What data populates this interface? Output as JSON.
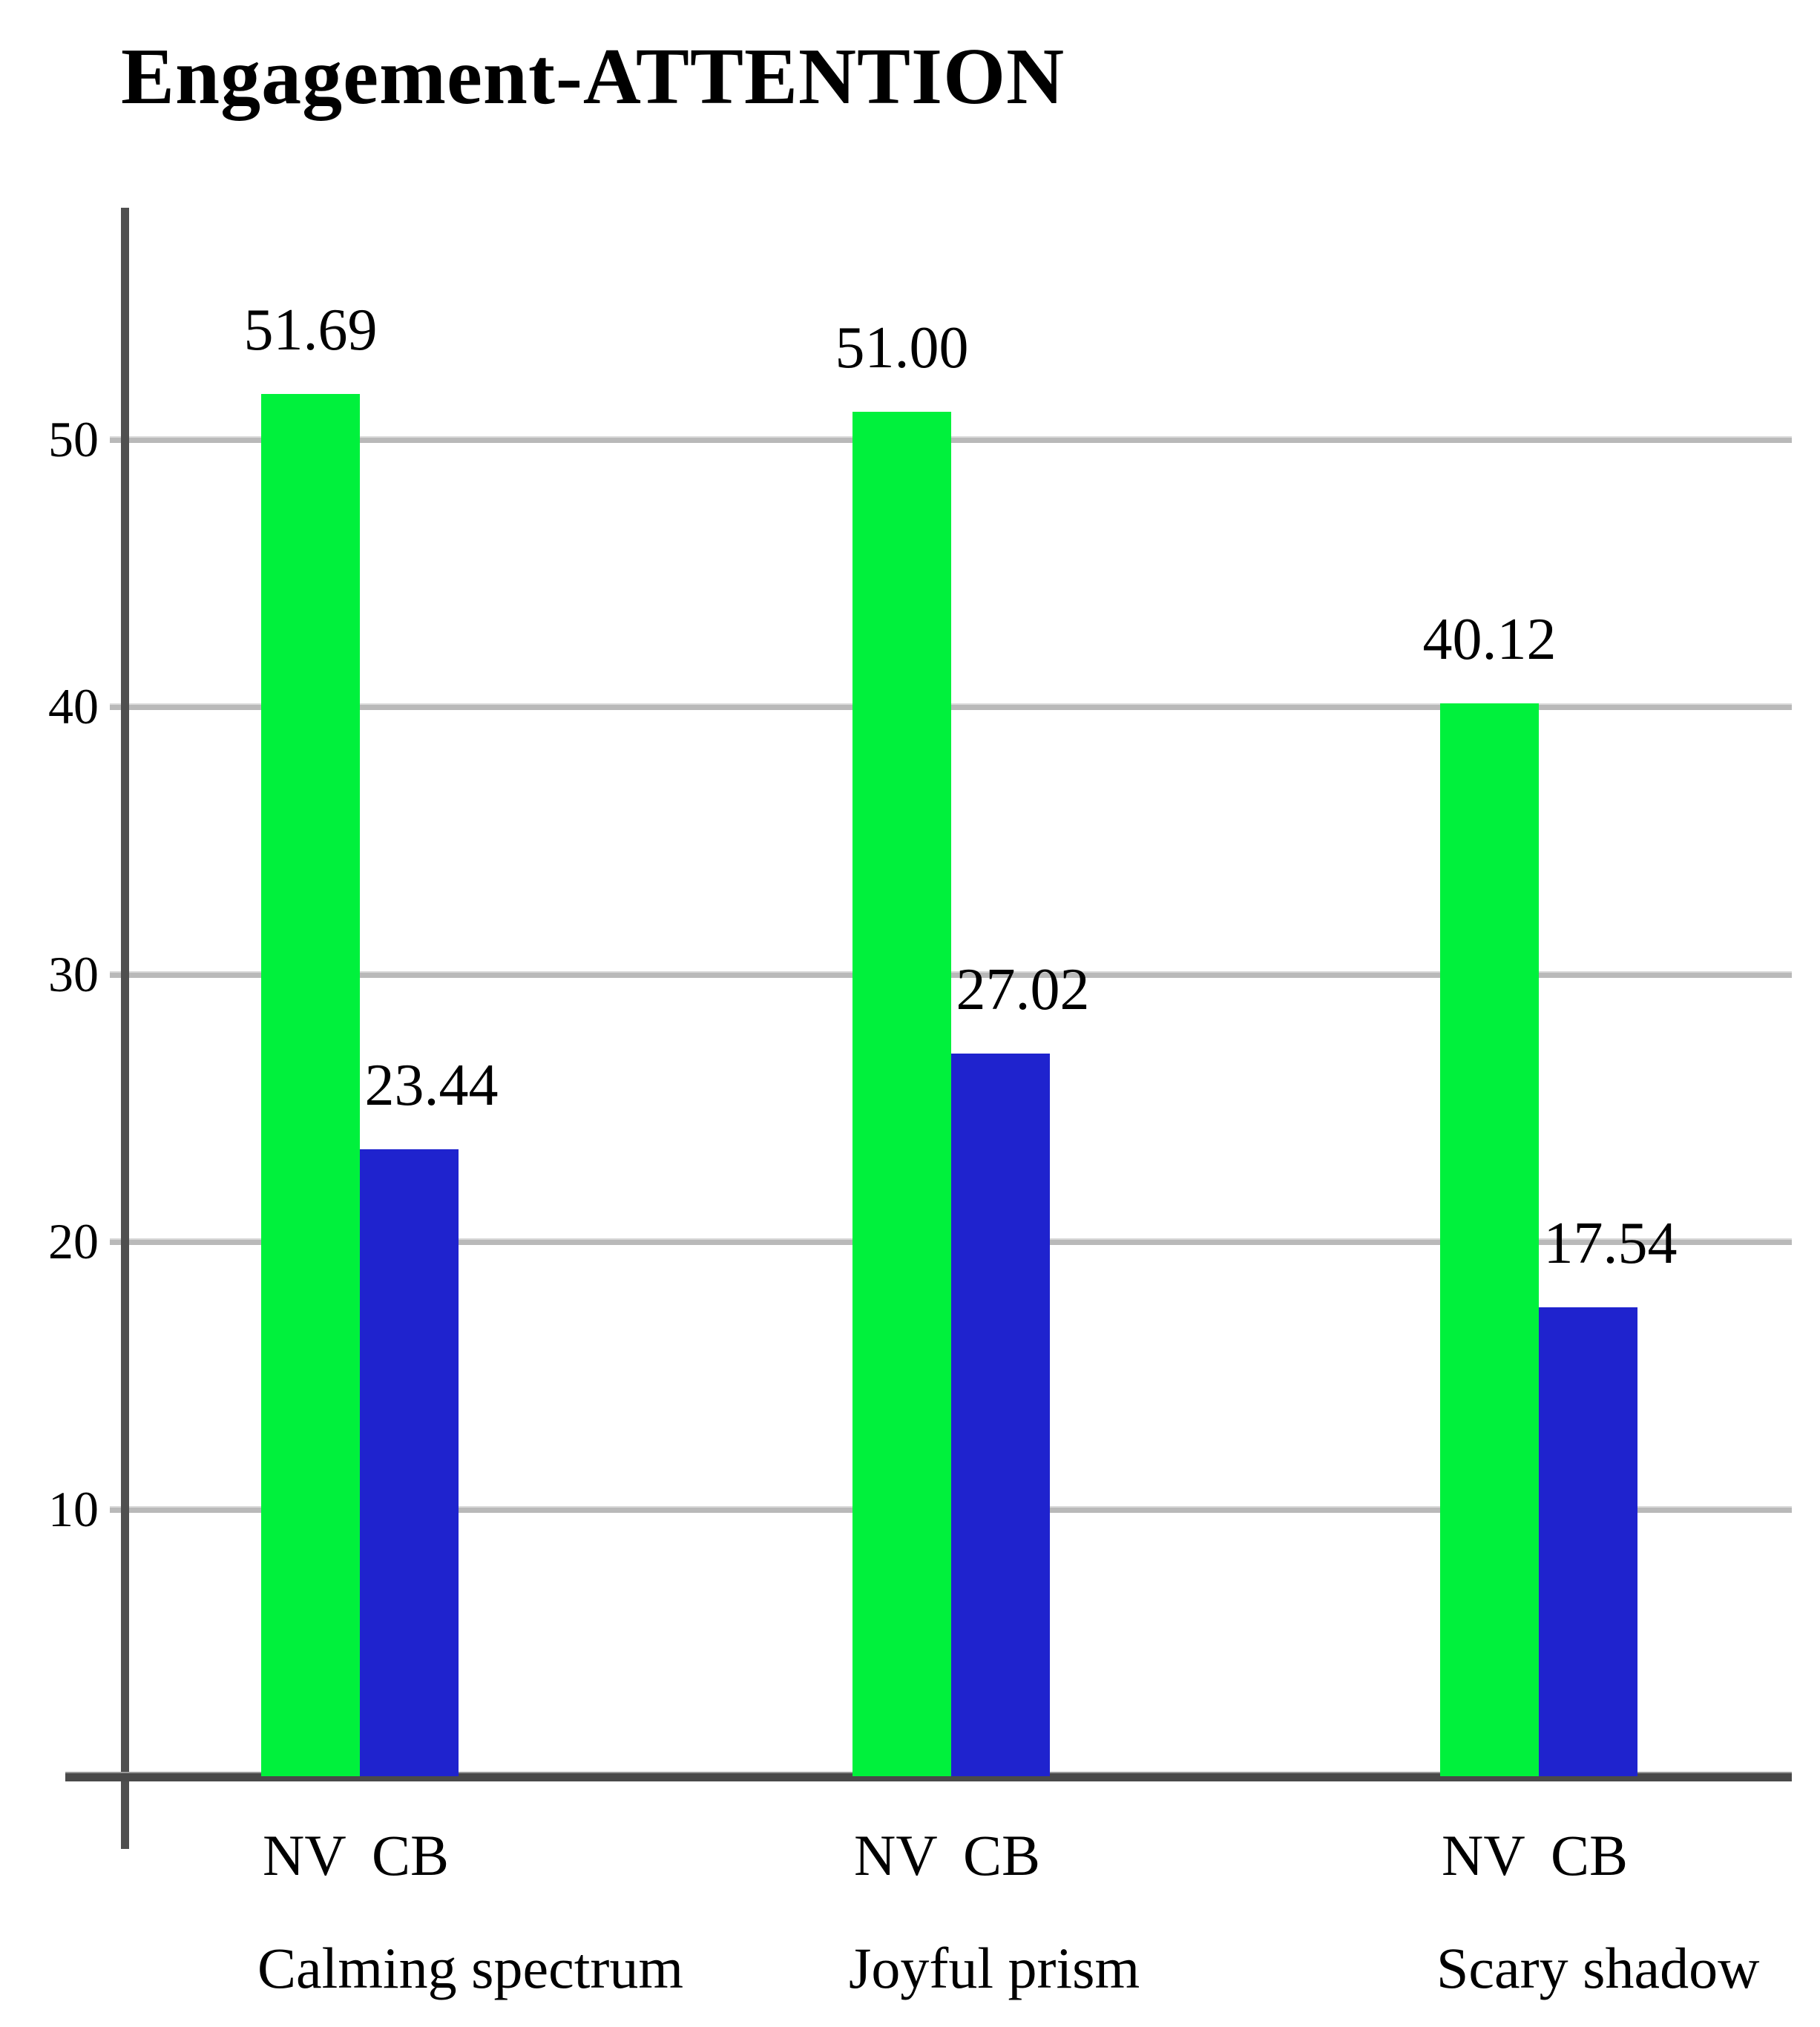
{
  "page": {
    "title": "Engagement-ATTENTION"
  },
  "chart_data": {
    "type": "bar",
    "title": "Engagement-ATTENTION",
    "categories": [
      "Calming spectrum",
      "Joyful prism",
      "Scary shadow"
    ],
    "series": [
      {
        "name": "NV",
        "color": "#00f13c",
        "values": [
          51.69,
          51.0,
          40.12
        ],
        "labels": [
          "51.69",
          "51.00",
          "40.12"
        ]
      },
      {
        "name": "CB",
        "color": "#1f23ce",
        "values": [
          23.44,
          27.02,
          17.54
        ],
        "labels": [
          "23.44",
          "27.02",
          "17.54"
        ]
      }
    ],
    "per_bar_axis_labels": [
      "NV",
      "CB"
    ],
    "yticks": [
      "10",
      "20",
      "30",
      "40",
      "50"
    ],
    "ytick_values": [
      10,
      20,
      30,
      40,
      50
    ],
    "ylim": [
      0,
      57.5
    ],
    "grid": true,
    "legend_position": "none",
    "value_labels_shown": true
  },
  "colors": {
    "bar_nv": "#00f13c",
    "bar_cb": "#1f23ce",
    "axis": "#4a4a4a",
    "gridline": "#b9b9b9",
    "text": "#000000",
    "background": "#ffffff"
  }
}
